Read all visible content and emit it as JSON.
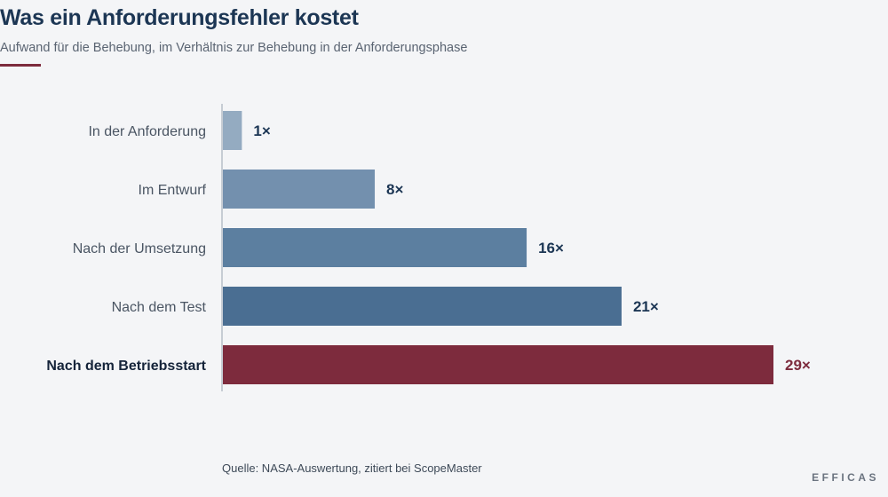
{
  "title": "Was ein Anforderungsfehler kostet",
  "subtitle": "Aufwand für die Behebung, im Verhältnis zur Behebung in der Anforderungsphase",
  "source": "Quelle: NASA-Auswertung, zitiert bei ScopeMaster",
  "brand": "EFFICAS",
  "colors": {
    "accent": "#7d2b3d",
    "bars": [
      "#94abc1",
      "#7390ae",
      "#5c7fa0",
      "#4a6e92",
      "#7d2b3d"
    ]
  },
  "chart_data": {
    "type": "bar",
    "orientation": "horizontal",
    "categories": [
      "In der Anforderung",
      "Im Entwurf",
      "Nach der Umsetzung",
      "Nach dem Test",
      "Nach dem Betriebsstart"
    ],
    "values": [
      1,
      8,
      16,
      21,
      29
    ],
    "value_labels": [
      "1×",
      "8×",
      "16×",
      "21×",
      "29×"
    ],
    "highlight_index": 4,
    "xlim": [
      0,
      29
    ],
    "grid": false
  }
}
